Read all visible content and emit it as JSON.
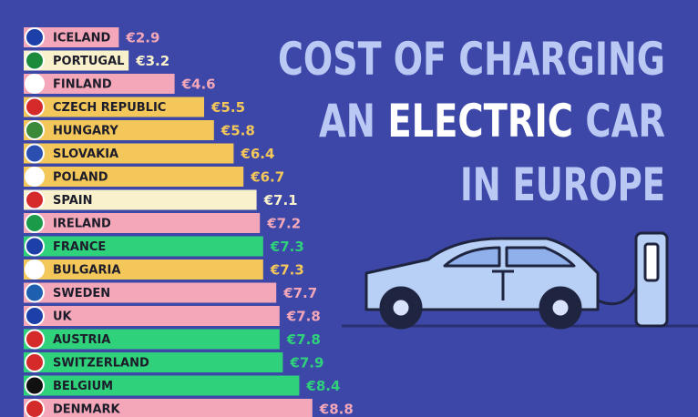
{
  "chart_data": {
    "type": "bar",
    "orientation": "horizontal",
    "title": [
      "COST OF CHARGING",
      "AN",
      "ELECTRIC",
      "CAR",
      "IN EUROPE"
    ],
    "categories": [
      "ICELAND",
      "PORTUGAL",
      "FINLAND",
      "CZECH REPUBLIC",
      "HUNGARY",
      "SLOVAKIA",
      "POLAND",
      "SPAIN",
      "IRELAND",
      "FRANCE",
      "BULGARIA",
      "SWEDEN",
      "UK",
      "AUSTRIA",
      "SWITZERLAND",
      "BELGIUM",
      "DENMARK"
    ],
    "values": [
      2.9,
      3.2,
      4.6,
      5.5,
      5.8,
      6.4,
      6.7,
      7.1,
      7.2,
      7.3,
      7.3,
      7.7,
      7.8,
      7.8,
      7.9,
      8.4,
      8.8
    ],
    "value_labels": [
      "€2.9",
      "€3.2",
      "€4.6",
      "€5.5",
      "€5.8",
      "€6.4",
      "€6.7",
      "€7.1",
      "€7.2",
      "€7.3",
      "€7.3",
      "€7.7",
      "€7.8",
      "€7.8",
      "€7.9",
      "€8.4",
      "€8.8"
    ],
    "colors": [
      "#f3a7b8",
      "#f9f1cc",
      "#f3a7b8",
      "#f3c75a",
      "#f3c75a",
      "#f3c75a",
      "#f3c75a",
      "#f9f1cc",
      "#f3a7b8",
      "#2fd17b",
      "#f3c75a",
      "#f3a7b8",
      "#f3a7b8",
      "#2fd17b",
      "#2fd17b",
      "#2fd17b",
      "#f3a7b8"
    ]
  }
}
